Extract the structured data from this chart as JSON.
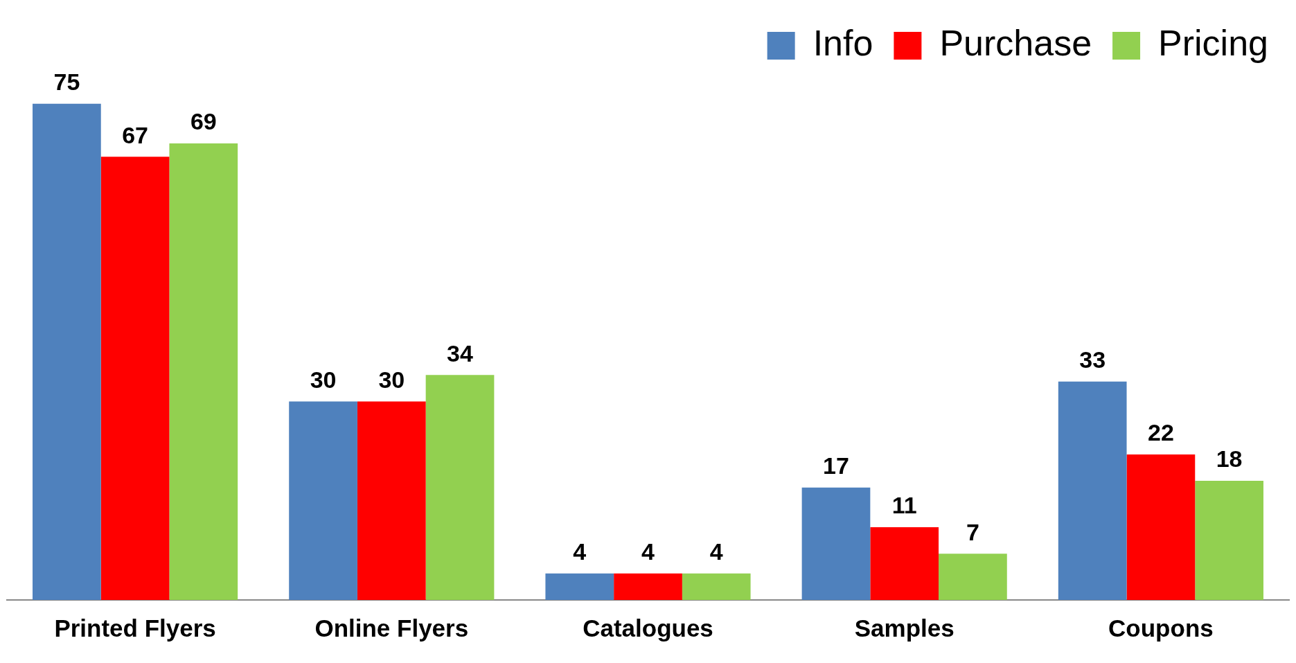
{
  "chart_data": {
    "type": "bar",
    "categories": [
      "Printed Flyers",
      "Online Flyers",
      "Catalogues",
      "Samples",
      "Coupons"
    ],
    "series": [
      {
        "name": "Info",
        "color": "#4f81bd",
        "values": [
          75,
          30,
          4,
          17,
          33
        ]
      },
      {
        "name": "Purchase",
        "color": "#ff0000",
        "values": [
          67,
          30,
          4,
          11,
          22
        ]
      },
      {
        "name": "Pricing",
        "color": "#92d050",
        "values": [
          69,
          34,
          4,
          7,
          18
        ]
      }
    ],
    "data_labels": true,
    "legend": "top right",
    "grid": false,
    "tick_labels": "x"
  }
}
